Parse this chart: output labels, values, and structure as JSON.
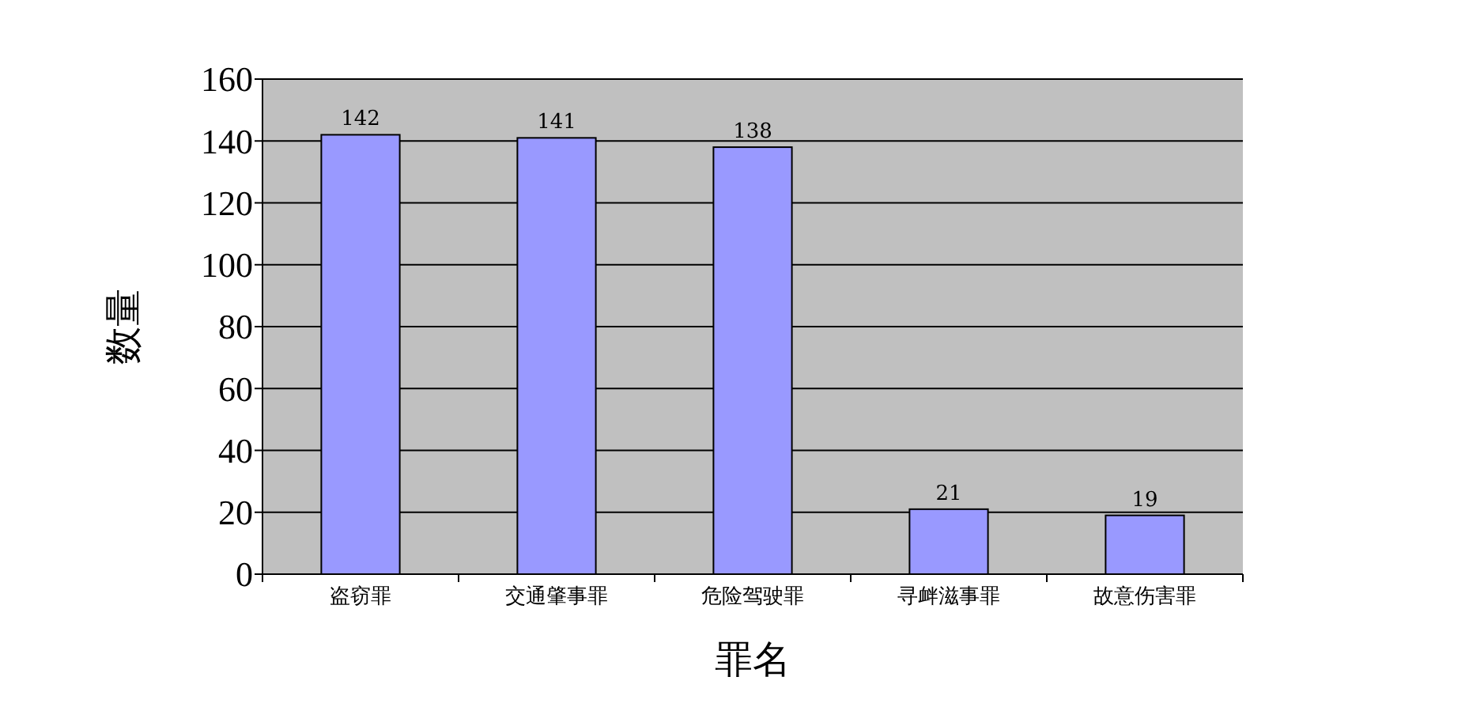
{
  "chart_data": {
    "type": "bar",
    "xlabel": "罪名",
    "ylabel": "数量",
    "categories": [
      "盗窃罪",
      "交通肇事罪",
      "危险驾驶罪",
      "寻衅滋事罪",
      "故意伤害罪"
    ],
    "values": [
      142,
      141,
      138,
      21,
      19
    ],
    "color": "#9999ff",
    "ylim": [
      0,
      160
    ],
    "yticks": [
      0,
      20,
      40,
      60,
      80,
      100,
      120,
      140,
      160
    ],
    "grid": "y",
    "data_labels": true
  }
}
